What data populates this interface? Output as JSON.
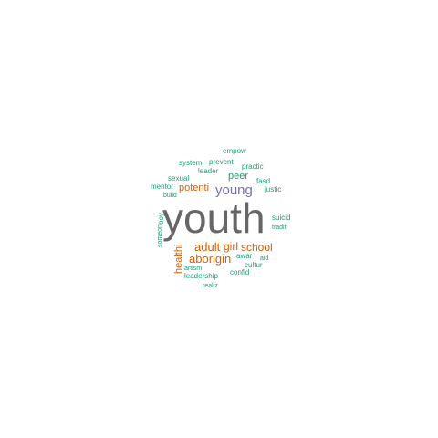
{
  "colors": {
    "background": "#ffffff",
    "dark_gray": "#666666",
    "purple": "#7570b3",
    "orange": "#d95f02",
    "teal": "#1b9e77"
  },
  "cloud": {
    "words": [
      {
        "text": "youth",
        "tier": "dark_gray"
      },
      {
        "text": "young",
        "tier": "purple"
      },
      {
        "text": "adult",
        "tier": "orange"
      },
      {
        "text": "girl",
        "tier": "orange"
      },
      {
        "text": "school",
        "tier": "orange"
      },
      {
        "text": "aborigin",
        "tier": "orange"
      },
      {
        "text": "healthi",
        "tier": "orange"
      },
      {
        "text": "potenti",
        "tier": "orange"
      },
      {
        "text": "peer",
        "tier": "teal"
      },
      {
        "text": "empow",
        "tier": "teal"
      },
      {
        "text": "system",
        "tier": "teal"
      },
      {
        "text": "prevent",
        "tier": "teal"
      },
      {
        "text": "practic",
        "tier": "teal"
      },
      {
        "text": "leader",
        "tier": "teal"
      },
      {
        "text": "sexual",
        "tier": "teal"
      },
      {
        "text": "fasd",
        "tier": "teal"
      },
      {
        "text": "mentor",
        "tier": "teal"
      },
      {
        "text": "justic",
        "tier": "teal"
      },
      {
        "text": "build",
        "tier": "teal"
      },
      {
        "text": "boy",
        "tier": "teal"
      },
      {
        "text": "suicid",
        "tier": "teal"
      },
      {
        "text": "tradit",
        "tier": "teal"
      },
      {
        "text": "someon",
        "tier": "teal"
      },
      {
        "text": "awar",
        "tier": "teal"
      },
      {
        "text": "aid",
        "tier": "teal"
      },
      {
        "text": "cultur",
        "tier": "teal"
      },
      {
        "text": "artism",
        "tier": "teal"
      },
      {
        "text": "confid",
        "tier": "teal"
      },
      {
        "text": "leadership",
        "tier": "teal"
      },
      {
        "text": "realiz",
        "tier": "teal"
      }
    ]
  }
}
